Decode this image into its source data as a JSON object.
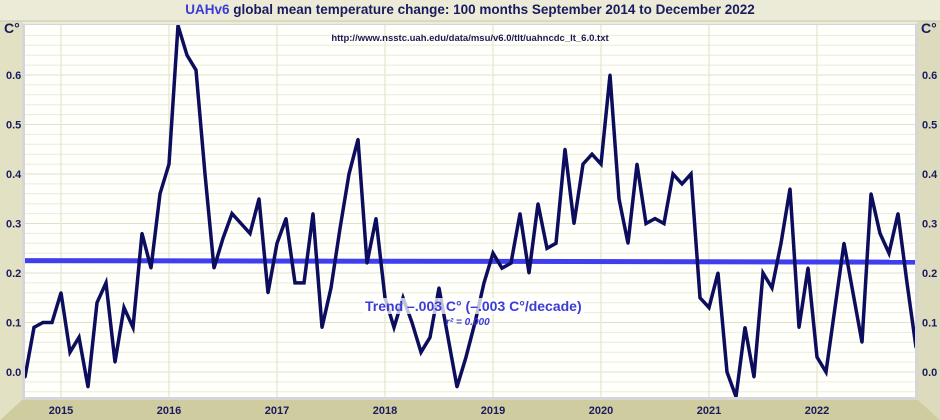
{
  "title": {
    "prefix": "UAHv6",
    "text": "global mean temperature change: 100 months September 2014 to December 2022"
  },
  "source": "http://www.nsstc.uah.edu/data/msu/v6.0/tlt/uahncdc_lt_6.0.txt",
  "trend_label": "Trend –.003 C° (–.003 C°/decade)",
  "r2_label": "r² = 0.000",
  "colors": {
    "series": "#0d0d5e",
    "trend": "#3f3ff0",
    "frame": "#d6d4b0",
    "grid": "#ecebd8"
  },
  "chart_data": {
    "type": "line",
    "title": "UAHv6 global mean temperature change: 100 months September 2014 to December 2022",
    "ylabel": "C°",
    "xlabel": "",
    "x_start": "2014-09",
    "x_end": "2022-12",
    "x_ticks": [
      "2015",
      "2016",
      "2017",
      "2018",
      "2019",
      "2020",
      "2021",
      "2022"
    ],
    "y_ticks": [
      "0.0",
      "0.1",
      "0.2",
      "0.3",
      "0.4",
      "0.5",
      "0.6"
    ],
    "ylim": [
      -0.05,
      0.7
    ],
    "grid": true,
    "series": [
      {
        "values": [
          -0.01,
          0.09,
          0.1,
          0.1,
          0.16,
          0.04,
          0.07,
          -0.03,
          0.14,
          0.18,
          0.02,
          0.13,
          0.09,
          0.28,
          0.21,
          0.36,
          0.42,
          0.7,
          0.64,
          0.61,
          0.4,
          0.21,
          0.27,
          0.32,
          0.3,
          0.28,
          0.35,
          0.16,
          0.26,
          0.31,
          0.18,
          0.18,
          0.32,
          0.09,
          0.17,
          0.29,
          0.4,
          0.47,
          0.22,
          0.31,
          0.15,
          0.09,
          0.15,
          0.1,
          0.04,
          0.07,
          0.17,
          0.07,
          -0.03,
          0.03,
          0.1,
          0.18,
          0.24,
          0.21,
          0.22,
          0.32,
          0.2,
          0.34,
          0.25,
          0.26,
          0.45,
          0.3,
          0.42,
          0.44,
          0.42,
          0.6,
          0.35,
          0.26,
          0.42,
          0.3,
          0.31,
          0.3,
          0.4,
          0.38,
          0.4,
          0.15,
          0.13,
          0.2,
          0.0,
          -0.05,
          0.09,
          -0.01,
          0.2,
          0.17,
          0.26,
          0.37,
          0.09,
          0.21,
          0.03,
          0.0,
          0.13,
          0.26,
          0.16,
          0.06,
          0.36,
          0.28,
          0.24,
          0.32,
          0.18,
          0.05
        ]
      },
      {
        "type": "trend",
        "values_start_end": [
          0.225,
          0.222
        ]
      }
    ]
  }
}
